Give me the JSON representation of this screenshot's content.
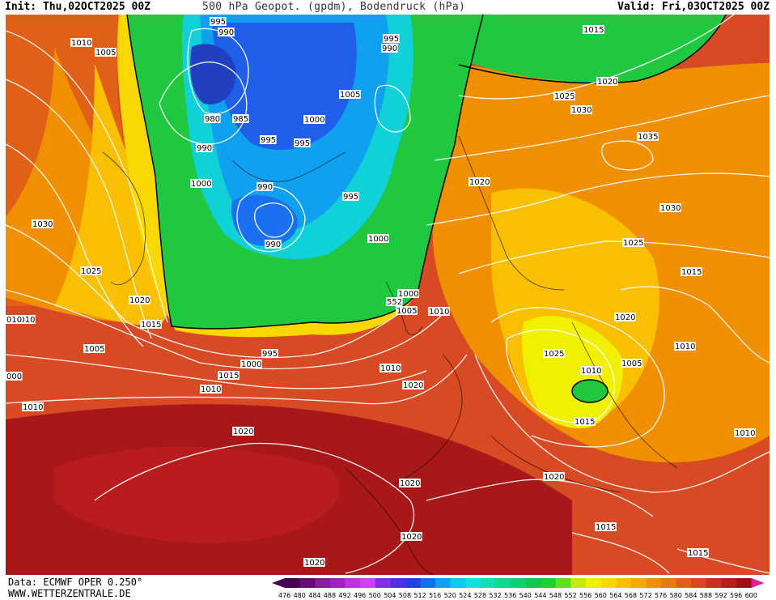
{
  "header": {
    "init": "Init: Thu,02OCT2025 00Z",
    "title": "500 hPa Geopot. (gpdm), Bodendruck (hPa)",
    "valid": "Valid: Fri,03OCT2025 00Z"
  },
  "footer": {
    "data_source": "Data: ECMWF OPER 0.250°",
    "website": "WWW.WETTERZENTRALE.DE"
  },
  "scale": {
    "labels": [
      "476",
      "480",
      "484",
      "488",
      "492",
      "496",
      "500",
      "504",
      "508",
      "512",
      "516",
      "520",
      "524",
      "528",
      "532",
      "536",
      "540",
      "544",
      "548",
      "552",
      "556",
      "560",
      "564",
      "568",
      "572",
      "576",
      "580",
      "584",
      "588",
      "592",
      "596",
      "600"
    ],
    "colors": [
      "#4a0050",
      "#6a0a7a",
      "#8a1aa0",
      "#a020c0",
      "#c030e0",
      "#d040f0",
      "#8030e0",
      "#5030e0",
      "#2040e0",
      "#1070f0",
      "#10a0f0",
      "#10c8f0",
      "#10e0e0",
      "#10e0b0",
      "#10d890",
      "#10d070",
      "#10c850",
      "#20d030",
      "#60e020",
      "#c8e810",
      "#f0f000",
      "#f8d800",
      "#f8c000",
      "#f8a800",
      "#f09000",
      "#e87810",
      "#e06018",
      "#d84820",
      "#c83020",
      "#b81c1c",
      "#a01018",
      "#e0209a"
    ]
  },
  "isobars": [
    {
      "text": "1010",
      "key": "a"
    },
    {
      "text": "1005",
      "key": "b"
    },
    {
      "text": "995",
      "key": "c"
    },
    {
      "text": "990",
      "key": "d"
    },
    {
      "text": "995",
      "key": "e"
    },
    {
      "text": "990",
      "key": "f"
    },
    {
      "text": "1015",
      "key": "g"
    },
    {
      "text": "1020",
      "key": "h"
    },
    {
      "text": "1025",
      "key": "i"
    },
    {
      "text": "1030",
      "key": "j"
    },
    {
      "text": "1005",
      "key": "k"
    },
    {
      "text": "980",
      "key": "l"
    },
    {
      "text": "985",
      "key": "m"
    },
    {
      "text": "1000",
      "key": "n"
    },
    {
      "text": "990",
      "key": "o"
    },
    {
      "text": "995",
      "key": "p"
    },
    {
      "text": "995",
      "key": "q"
    },
    {
      "text": "1035",
      "key": "r"
    },
    {
      "text": "1000",
      "key": "s"
    },
    {
      "text": "990",
      "key": "t"
    },
    {
      "text": "995",
      "key": "u"
    },
    {
      "text": "1020",
      "key": "v"
    },
    {
      "text": "1030",
      "key": "w"
    },
    {
      "text": "1030",
      "key": "x"
    },
    {
      "text": "990",
      "key": "y"
    },
    {
      "text": "1000",
      "key": "z"
    },
    {
      "text": "1025",
      "key": "aa"
    },
    {
      "text": "1025",
      "key": "ab"
    },
    {
      "text": "1015",
      "key": "ac"
    },
    {
      "text": "1020",
      "key": "ad"
    },
    {
      "text": "1000",
      "key": "ae"
    },
    {
      "text": "1005",
      "key": "af"
    },
    {
      "text": "1010",
      "key": "ag"
    },
    {
      "text": "1015",
      "key": "ah"
    },
    {
      "text": "1010",
      "key": "ai"
    },
    {
      "text": "1020",
      "key": "aj"
    },
    {
      "text": "1005",
      "key": "ak"
    },
    {
      "text": "995",
      "key": "al"
    },
    {
      "text": "1000",
      "key": "am"
    },
    {
      "text": "1025",
      "key": "an"
    },
    {
      "text": "1010",
      "key": "ao"
    },
    {
      "text": "1005",
      "key": "ap"
    },
    {
      "text": "1010",
      "key": "aq"
    },
    {
      "text": "1015",
      "key": "ar"
    },
    {
      "text": "1010",
      "key": "as"
    },
    {
      "text": "1020",
      "key": "at"
    },
    {
      "text": "1010",
      "key": "au"
    },
    {
      "text": "1015",
      "key": "av"
    },
    {
      "text": "1020",
      "key": "aw"
    },
    {
      "text": "1010",
      "key": "ax"
    },
    {
      "text": "1020",
      "key": "ay"
    },
    {
      "text": "1020",
      "key": "az"
    },
    {
      "text": "1020",
      "key": "ba"
    },
    {
      "text": "1015",
      "key": "bb"
    },
    {
      "text": "1015",
      "key": "bc"
    },
    {
      "text": "1020",
      "key": "bd"
    },
    {
      "text": "1010",
      "key": "be"
    },
    {
      "text": "000",
      "key": "bf"
    },
    {
      "text": "010",
      "key": "bg"
    },
    {
      "text": "552",
      "key": "bh"
    }
  ]
}
